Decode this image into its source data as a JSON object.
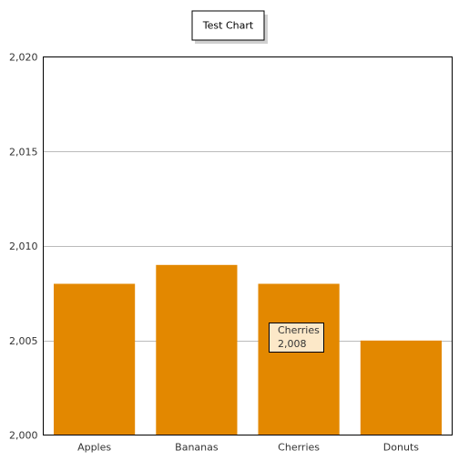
{
  "chart_data": {
    "type": "bar",
    "title": "Test Chart",
    "categories": [
      "Apples",
      "Bananas",
      "Cherries",
      "Donuts"
    ],
    "series": [
      {
        "values": [
          2008,
          2009,
          2008,
          2005
        ]
      }
    ],
    "ylim": [
      2000,
      2020
    ],
    "yticks": [
      "2,000",
      "2,005",
      "2,010",
      "2,015",
      "2,020"
    ],
    "grid": true,
    "legend": "none",
    "bar_color": "#e38800",
    "tooltip": {
      "category": "Cherries",
      "value_label": "2,008"
    }
  }
}
